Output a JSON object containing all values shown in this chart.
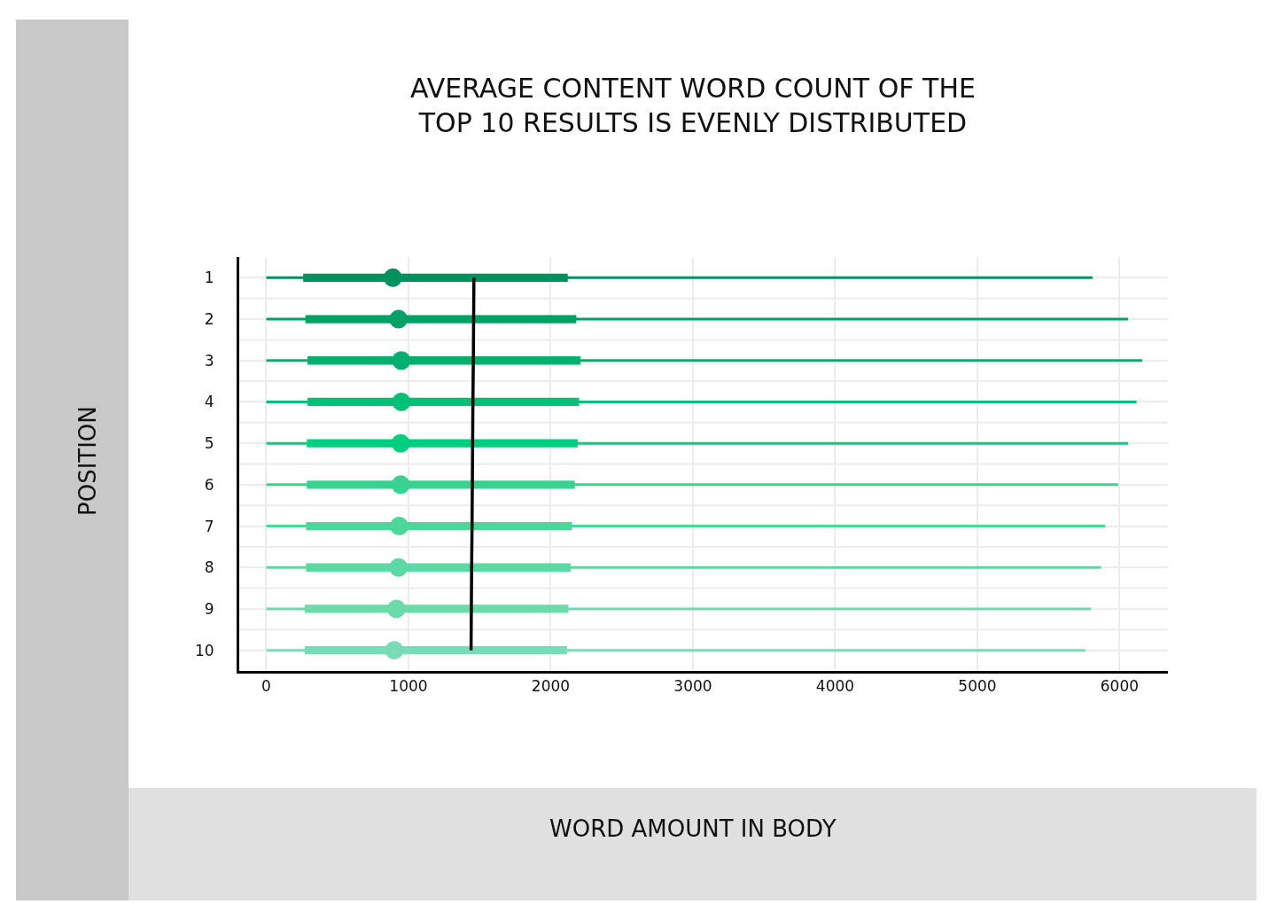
{
  "chart_data": {
    "type": "box",
    "orientation": "horizontal",
    "title": "AVERAGE CONTENT WORD COUNT OF THE\nTOP 10 RESULTS IS EVENLY DISTRIBUTED",
    "ylabel": "POSITION",
    "annotations": [
      "WORD AMOUNT IN BODY"
    ],
    "categories": [
      "1",
      "2",
      "3",
      "4",
      "5",
      "6",
      "7",
      "8",
      "9",
      "10"
    ],
    "colors": [
      "#00925e",
      "#00a066",
      "#00b06f",
      "#00c077",
      "#00cf80",
      "#38d390",
      "#4bd69a",
      "#5cd8a3",
      "#6cdbac",
      "#7adcb6"
    ],
    "boxes": [
      {
        "low": 0,
        "q1": 260,
        "median": 890,
        "q3": 2120,
        "high": 5810
      },
      {
        "low": 0,
        "q1": 275,
        "median": 930,
        "q3": 2180,
        "high": 6060
      },
      {
        "low": 0,
        "q1": 290,
        "median": 950,
        "q3": 2210,
        "high": 6160
      },
      {
        "low": 0,
        "q1": 290,
        "median": 950,
        "q3": 2200,
        "high": 6120
      },
      {
        "low": 0,
        "q1": 285,
        "median": 945,
        "q3": 2190,
        "high": 6060
      },
      {
        "low": 0,
        "q1": 285,
        "median": 945,
        "q3": 2170,
        "high": 5990
      },
      {
        "low": 0,
        "q1": 280,
        "median": 935,
        "q3": 2150,
        "high": 5900
      },
      {
        "low": 0,
        "q1": 280,
        "median": 930,
        "q3": 2140,
        "high": 5870
      },
      {
        "low": 0,
        "q1": 270,
        "median": 915,
        "q3": 2125,
        "high": 5800
      },
      {
        "low": 0,
        "q1": 270,
        "median": 900,
        "q3": 2115,
        "high": 5760
      }
    ],
    "series": [
      {
        "type": "line",
        "color": "#000000",
        "marker": "none",
        "values": [
          1460,
          1458,
          1456,
          1453,
          1451,
          1449,
          1447,
          1444,
          1442,
          1440
        ]
      }
    ],
    "xlim": [
      -190,
      6340
    ],
    "xticks": [
      0,
      1000,
      2000,
      3000,
      4000,
      5000,
      6000
    ],
    "grid": true,
    "marker": "circle"
  }
}
